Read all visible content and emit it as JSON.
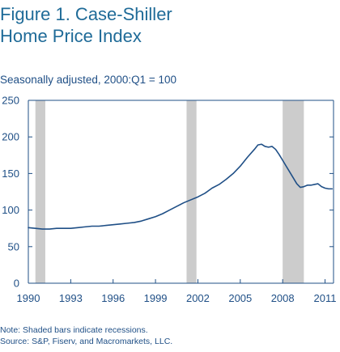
{
  "title_line1": "Figure 1. Case-Shiller",
  "title_line2": "Home Price Index",
  "subtitle": "Seasonally adjusted, 2000:Q1 = 100",
  "note": "Note: Shaded bars indicate recessions.",
  "source": "Source: S&P, Fiserv, and Macromarkets, LLC.",
  "colors": {
    "line": "#1f4f86",
    "recession": "#cccccc",
    "axis": "#1f4f86",
    "title": "#1f6b98"
  },
  "chart_data": {
    "type": "line",
    "title": "Figure 1. Case-Shiller Home Price Index",
    "subtitle": "Seasonally adjusted, 2000:Q1 = 100",
    "xlabel": "",
    "ylabel": "",
    "xlim": [
      1990,
      2011.6
    ],
    "ylim": [
      0,
      250
    ],
    "yticks": [
      0,
      50,
      100,
      150,
      200,
      250
    ],
    "xticks": [
      1990,
      1993,
      1996,
      1999,
      2002,
      2005,
      2008,
      2011
    ],
    "grid": false,
    "legend": "none",
    "recessions": [
      {
        "start": 1990.5,
        "end": 1991.2
      },
      {
        "start": 2001.2,
        "end": 2001.9
      },
      {
        "start": 2008.0,
        "end": 2009.5
      }
    ],
    "series": [
      {
        "x": [
          1990.0,
          1990.5,
          1991.0,
          1991.5,
          1992.0,
          1992.5,
          1993.0,
          1993.5,
          1994.0,
          1994.5,
          1995.0,
          1995.5,
          1996.0,
          1996.5,
          1997.0,
          1997.5,
          1998.0,
          1998.5,
          1999.0,
          1999.5,
          2000.0,
          2000.5,
          2001.0,
          2001.5,
          2002.0,
          2002.5,
          2003.0,
          2003.5,
          2004.0,
          2004.5,
          2005.0,
          2005.5,
          2006.0,
          2006.25,
          2006.5,
          2006.75,
          2007.0,
          2007.25,
          2007.5,
          2007.75,
          2008.0,
          2008.25,
          2008.5,
          2008.75,
          2009.0,
          2009.25,
          2009.5,
          2009.75,
          2010.0,
          2010.25,
          2010.5,
          2010.75,
          2011.0,
          2011.25,
          2011.5
        ],
        "values": [
          76,
          75,
          74,
          74,
          75,
          75,
          75,
          76,
          77,
          78,
          78,
          79,
          80,
          81,
          82,
          83,
          85,
          88,
          91,
          95,
          100,
          105,
          110,
          114,
          118,
          123,
          130,
          135,
          142,
          150,
          160,
          172,
          183,
          189,
          190,
          187,
          186,
          187,
          183,
          176,
          168,
          160,
          152,
          144,
          136,
          131,
          132,
          134,
          134,
          135,
          136,
          132,
          130,
          129,
          129
        ]
      }
    ]
  }
}
